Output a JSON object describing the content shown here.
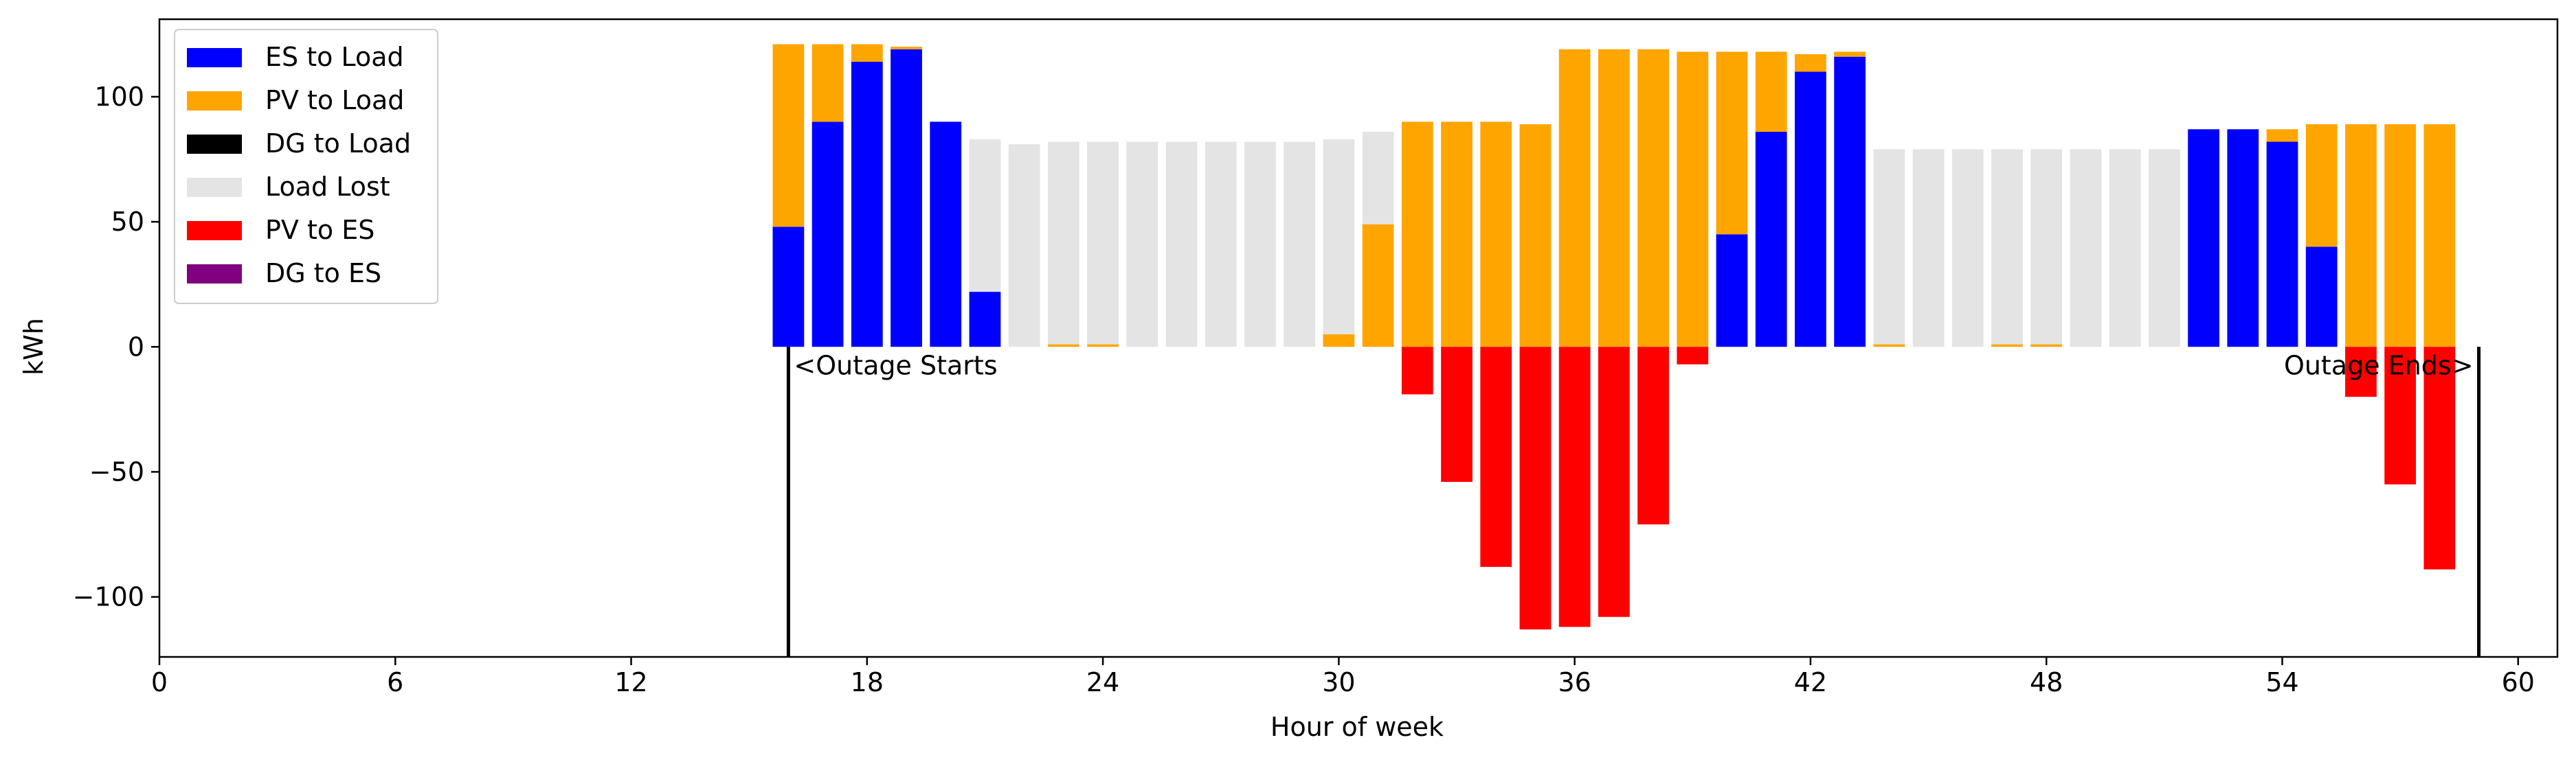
{
  "chart_data": {
    "type": "bar",
    "stacked": true,
    "xlabel": "Hour of week",
    "ylabel": "kWh",
    "xlim": [
      0,
      61
    ],
    "ylim": [
      -124,
      131
    ],
    "xticks": [
      0,
      6,
      12,
      18,
      24,
      30,
      36,
      42,
      48,
      54,
      60
    ],
    "yticks": [
      -100,
      -50,
      0,
      50,
      100
    ],
    "grid": false,
    "legend_position": "top-left",
    "x": [
      16,
      17,
      18,
      19,
      20,
      21,
      22,
      23,
      24,
      25,
      26,
      27,
      28,
      29,
      30,
      31,
      32,
      33,
      34,
      35,
      36,
      37,
      38,
      39,
      40,
      41,
      42,
      43,
      44,
      45,
      46,
      47,
      48,
      49,
      50,
      51,
      52,
      53,
      54,
      55,
      56,
      57,
      58
    ],
    "series": [
      {
        "name": "ES to Load",
        "color": "#0000ff",
        "values": [
          48,
          90,
          114,
          119,
          90,
          22,
          0,
          0,
          0,
          0,
          0,
          0,
          0,
          0,
          0,
          0,
          0,
          0,
          0,
          0,
          0,
          0,
          0,
          0,
          45,
          86,
          110,
          116,
          0,
          0,
          0,
          0,
          0,
          0,
          0,
          0,
          87,
          87,
          82,
          40,
          0,
          0,
          0
        ]
      },
      {
        "name": "PV to Load",
        "color": "#ffa500",
        "values": [
          73,
          31,
          7,
          1,
          0,
          0,
          0,
          1,
          1,
          0,
          0,
          0,
          0,
          0,
          5,
          49,
          90,
          90,
          90,
          89,
          119,
          119,
          119,
          118,
          73,
          32,
          7,
          2,
          1,
          0,
          0,
          1,
          1,
          0,
          0,
          0,
          0,
          0,
          5,
          49,
          89,
          89,
          89
        ]
      },
      {
        "name": "DG to Load",
        "color": "#000000",
        "values": [
          0,
          0,
          0,
          0,
          0,
          0,
          0,
          0,
          0,
          0,
          0,
          0,
          0,
          0,
          0,
          0,
          0,
          0,
          0,
          0,
          0,
          0,
          0,
          0,
          0,
          0,
          0,
          0,
          0,
          0,
          0,
          0,
          0,
          0,
          0,
          0,
          0,
          0,
          0,
          0,
          0,
          0,
          0
        ]
      },
      {
        "name": "Load Lost",
        "color": "#e4e4e4",
        "values": [
          0,
          0,
          0,
          0,
          0,
          61,
          81,
          81,
          81,
          82,
          82,
          82,
          82,
          82,
          78,
          37,
          0,
          0,
          0,
          0,
          0,
          0,
          0,
          0,
          0,
          0,
          0,
          0,
          78,
          79,
          79,
          78,
          78,
          79,
          79,
          79,
          0,
          0,
          0,
          0,
          0,
          0,
          0
        ]
      },
      {
        "name": "PV to ES",
        "color": "#ff0000",
        "values": [
          0,
          0,
          0,
          0,
          0,
          0,
          0,
          0,
          0,
          0,
          0,
          0,
          0,
          0,
          0,
          0,
          -19,
          -54,
          -88,
          -113,
          -112,
          -108,
          -71,
          -7,
          0,
          0,
          0,
          0,
          0,
          0,
          0,
          0,
          0,
          0,
          0,
          0,
          0,
          0,
          0,
          0,
          -20,
          -55,
          -89
        ]
      },
      {
        "name": "DG to ES",
        "color": "#800080",
        "values": [
          0,
          0,
          0,
          0,
          0,
          0,
          0,
          0,
          0,
          0,
          0,
          0,
          0,
          0,
          0,
          0,
          0,
          0,
          0,
          0,
          0,
          0,
          0,
          0,
          0,
          0,
          0,
          0,
          0,
          0,
          0,
          0,
          0,
          0,
          0,
          0,
          0,
          0,
          0,
          0,
          0,
          0,
          0
        ]
      }
    ],
    "markers": [
      {
        "x": 16,
        "label": "<Outage Starts",
        "align": "left"
      },
      {
        "x": 59,
        "label": "Outage Ends>",
        "align": "right"
      }
    ]
  }
}
